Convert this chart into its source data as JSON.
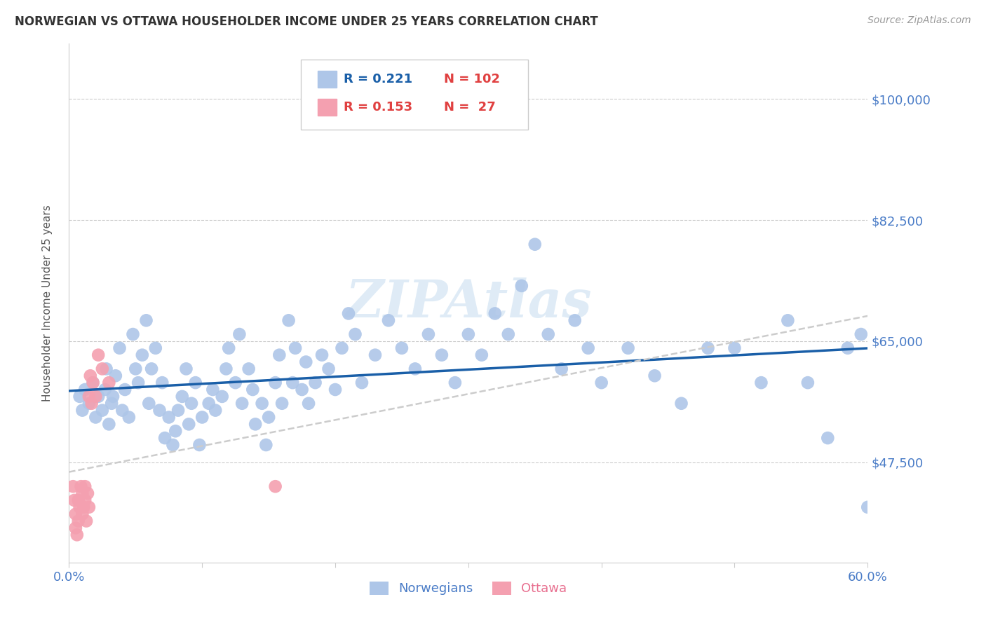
{
  "title": "NORWEGIAN VS OTTAWA HOUSEHOLDER INCOME UNDER 25 YEARS CORRELATION CHART",
  "source": "Source: ZipAtlas.com",
  "ylabel": "Householder Income Under 25 years",
  "xlim": [
    0.0,
    0.6
  ],
  "ylim": [
    33000,
    108000
  ],
  "ytick_labels": [
    "$47,500",
    "$65,000",
    "$82,500",
    "$100,000"
  ],
  "ytick_values": [
    47500,
    65000,
    82500,
    100000
  ],
  "watermark": "ZIPAtlas",
  "norwegian_color": "#aec6e8",
  "ottawa_color": "#f4a0b0",
  "trend_norwegian_color": "#1a5fa8",
  "trend_oslo_color": "#cccccc",
  "background_color": "#ffffff",
  "norwegians_x": [
    0.008,
    0.01,
    0.012,
    0.015,
    0.018,
    0.02,
    0.022,
    0.025,
    0.027,
    0.028,
    0.03,
    0.032,
    0.033,
    0.035,
    0.038,
    0.04,
    0.042,
    0.045,
    0.048,
    0.05,
    0.052,
    0.055,
    0.058,
    0.06,
    0.062,
    0.065,
    0.068,
    0.07,
    0.072,
    0.075,
    0.078,
    0.08,
    0.082,
    0.085,
    0.088,
    0.09,
    0.092,
    0.095,
    0.098,
    0.1,
    0.105,
    0.108,
    0.11,
    0.115,
    0.118,
    0.12,
    0.125,
    0.128,
    0.13,
    0.135,
    0.138,
    0.14,
    0.145,
    0.148,
    0.15,
    0.155,
    0.158,
    0.16,
    0.165,
    0.168,
    0.17,
    0.175,
    0.178,
    0.18,
    0.185,
    0.19,
    0.195,
    0.2,
    0.205,
    0.21,
    0.215,
    0.22,
    0.23,
    0.24,
    0.25,
    0.26,
    0.27,
    0.28,
    0.29,
    0.3,
    0.31,
    0.32,
    0.33,
    0.34,
    0.35,
    0.36,
    0.37,
    0.38,
    0.39,
    0.4,
    0.42,
    0.44,
    0.46,
    0.48,
    0.5,
    0.52,
    0.54,
    0.555,
    0.57,
    0.585,
    0.595,
    0.6
  ],
  "norwegians_y": [
    57000,
    55000,
    58000,
    56000,
    59000,
    54000,
    57000,
    55000,
    58000,
    61000,
    53000,
    56000,
    57000,
    60000,
    64000,
    55000,
    58000,
    54000,
    66000,
    61000,
    59000,
    63000,
    68000,
    56000,
    61000,
    64000,
    55000,
    59000,
    51000,
    54000,
    50000,
    52000,
    55000,
    57000,
    61000,
    53000,
    56000,
    59000,
    50000,
    54000,
    56000,
    58000,
    55000,
    57000,
    61000,
    64000,
    59000,
    66000,
    56000,
    61000,
    58000,
    53000,
    56000,
    50000,
    54000,
    59000,
    63000,
    56000,
    68000,
    59000,
    64000,
    58000,
    62000,
    56000,
    59000,
    63000,
    61000,
    58000,
    64000,
    69000,
    66000,
    59000,
    63000,
    68000,
    64000,
    61000,
    66000,
    63000,
    59000,
    66000,
    63000,
    69000,
    66000,
    73000,
    79000,
    66000,
    61000,
    68000,
    64000,
    59000,
    64000,
    60000,
    56000,
    64000,
    64000,
    59000,
    68000,
    59000,
    51000,
    64000,
    66000,
    41000
  ],
  "ottawa_x": [
    0.003,
    0.004,
    0.005,
    0.005,
    0.006,
    0.007,
    0.007,
    0.008,
    0.009,
    0.01,
    0.01,
    0.011,
    0.012,
    0.012,
    0.013,
    0.014,
    0.015,
    0.015,
    0.016,
    0.017,
    0.018,
    0.02,
    0.022,
    0.025,
    0.03,
    0.155
  ],
  "ottawa_y": [
    44000,
    42000,
    40000,
    38000,
    37000,
    39000,
    42000,
    41000,
    44000,
    40000,
    43000,
    41000,
    44000,
    42000,
    39000,
    43000,
    41000,
    57000,
    60000,
    56000,
    59000,
    57000,
    63000,
    61000,
    59000,
    44000
  ]
}
